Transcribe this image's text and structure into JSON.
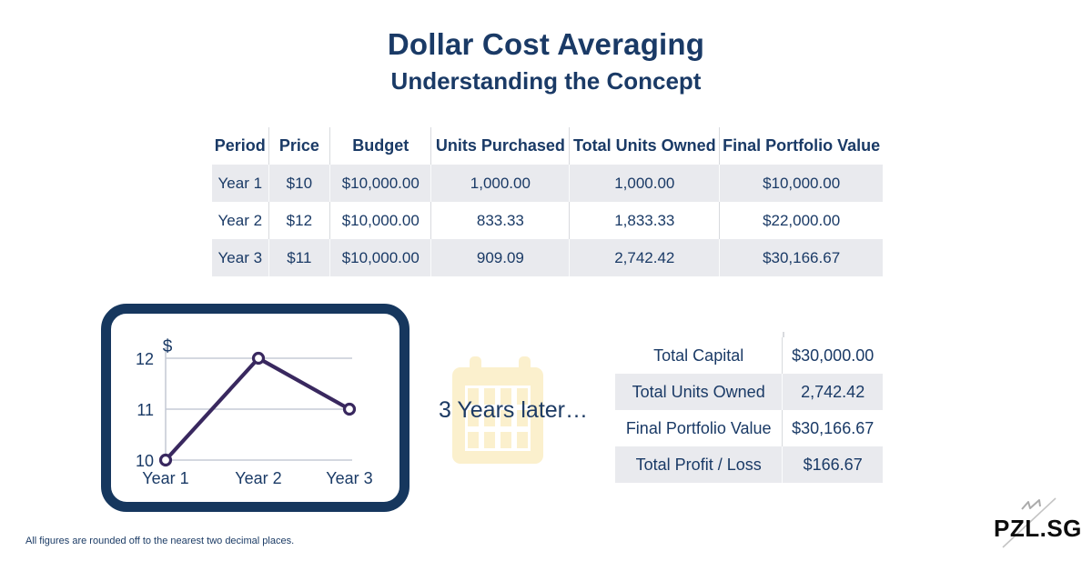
{
  "page": {
    "title": "Dollar Cost Averaging",
    "subtitle": "Understanding the Concept",
    "footnote": "All figures are rounded off to the nearest two decimal places.",
    "logo": "PZL.SG"
  },
  "dca_table": {
    "headers": [
      "Period",
      "Price",
      "Budget",
      "Units Purchased",
      "Total Units Owned",
      "Final Portfolio Value"
    ],
    "rows": [
      [
        "Year 1",
        "$10",
        "$10,000.00",
        "1,000.00",
        "1,000.00",
        "$10,000.00"
      ],
      [
        "Year 2",
        "$12",
        "$10,000.00",
        "833.33",
        "1,833.33",
        "$22,000.00"
      ],
      [
        "Year 3",
        "$11",
        "$10,000.00",
        "909.09",
        "2,742.42",
        "$30,166.67"
      ]
    ]
  },
  "timeline": {
    "label": "3 Years later…",
    "icon": "calendar-icon"
  },
  "summary_table": {
    "rows": [
      {
        "label": "Total Capital",
        "value": "$30,000.00"
      },
      {
        "label": "Total Units Owned",
        "value": "2,742.42"
      },
      {
        "label": "Final Portfolio Value",
        "value": "$30,166.67"
      },
      {
        "label": "Total Profit / Loss",
        "value": "$166.67"
      }
    ]
  },
  "chart_data": {
    "type": "line",
    "title": "",
    "categories": [
      "Year 1",
      "Year 2",
      "Year 3"
    ],
    "values": [
      10,
      12,
      11
    ],
    "ylabel": "$",
    "yticks_top_to_bottom": [
      12,
      11,
      10
    ],
    "ylim": [
      10,
      12
    ],
    "grid": true,
    "legend": false,
    "line_color": "#39285f",
    "marker": "open-circle"
  },
  "colors": {
    "navy_text": "#1a3a66",
    "table_row_gray": "#e9eaee",
    "tablet_frame": "#16375e",
    "chart_line": "#39285f",
    "calendar_yellow": "#fbf0cd",
    "logo_black": "#0d0d0d"
  }
}
